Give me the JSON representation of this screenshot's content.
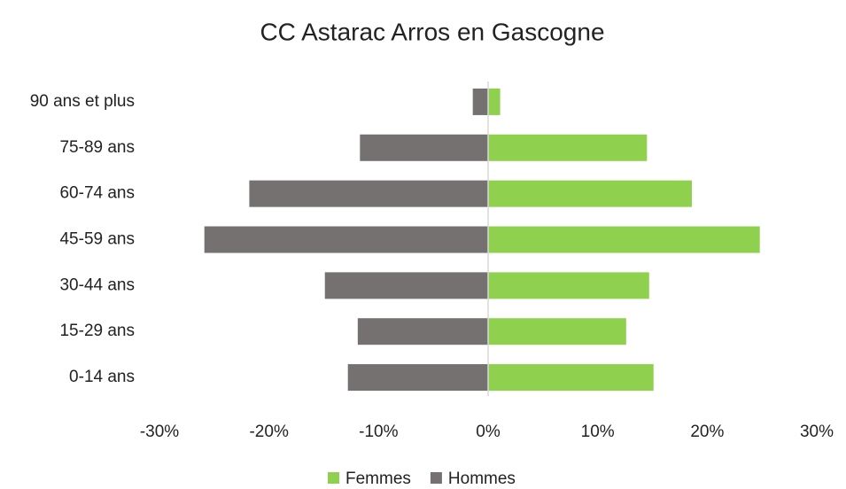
{
  "chart_data": {
    "type": "bar",
    "orientation": "horizontal",
    "title": "CC Astarac Arros en Gascogne",
    "categories": [
      "90 ans et plus",
      "75-89 ans",
      "60-74 ans",
      "45-59 ans",
      "30-44 ans",
      "15-29 ans",
      "0-14 ans"
    ],
    "series": [
      {
        "name": "Femmes",
        "color": "#8fd14f",
        "values": [
          1.1,
          14.5,
          18.6,
          24.8,
          14.7,
          12.6,
          15.1
        ]
      },
      {
        "name": "Hommes",
        "color": "#767171",
        "values": [
          -1.4,
          -11.7,
          -21.8,
          -25.9,
          -14.9,
          -11.9,
          -12.8
        ]
      }
    ],
    "xlim": [
      -30,
      30
    ],
    "xticks": [
      {
        "value": -30,
        "label": "-30%"
      },
      {
        "value": -20,
        "label": "-20%"
      },
      {
        "value": -10,
        "label": "-10%"
      },
      {
        "value": 0,
        "label": "0%"
      },
      {
        "value": 10,
        "label": "10%"
      },
      {
        "value": 20,
        "label": "20%"
      },
      {
        "value": 30,
        "label": "30%"
      }
    ],
    "legend": "bottom"
  }
}
